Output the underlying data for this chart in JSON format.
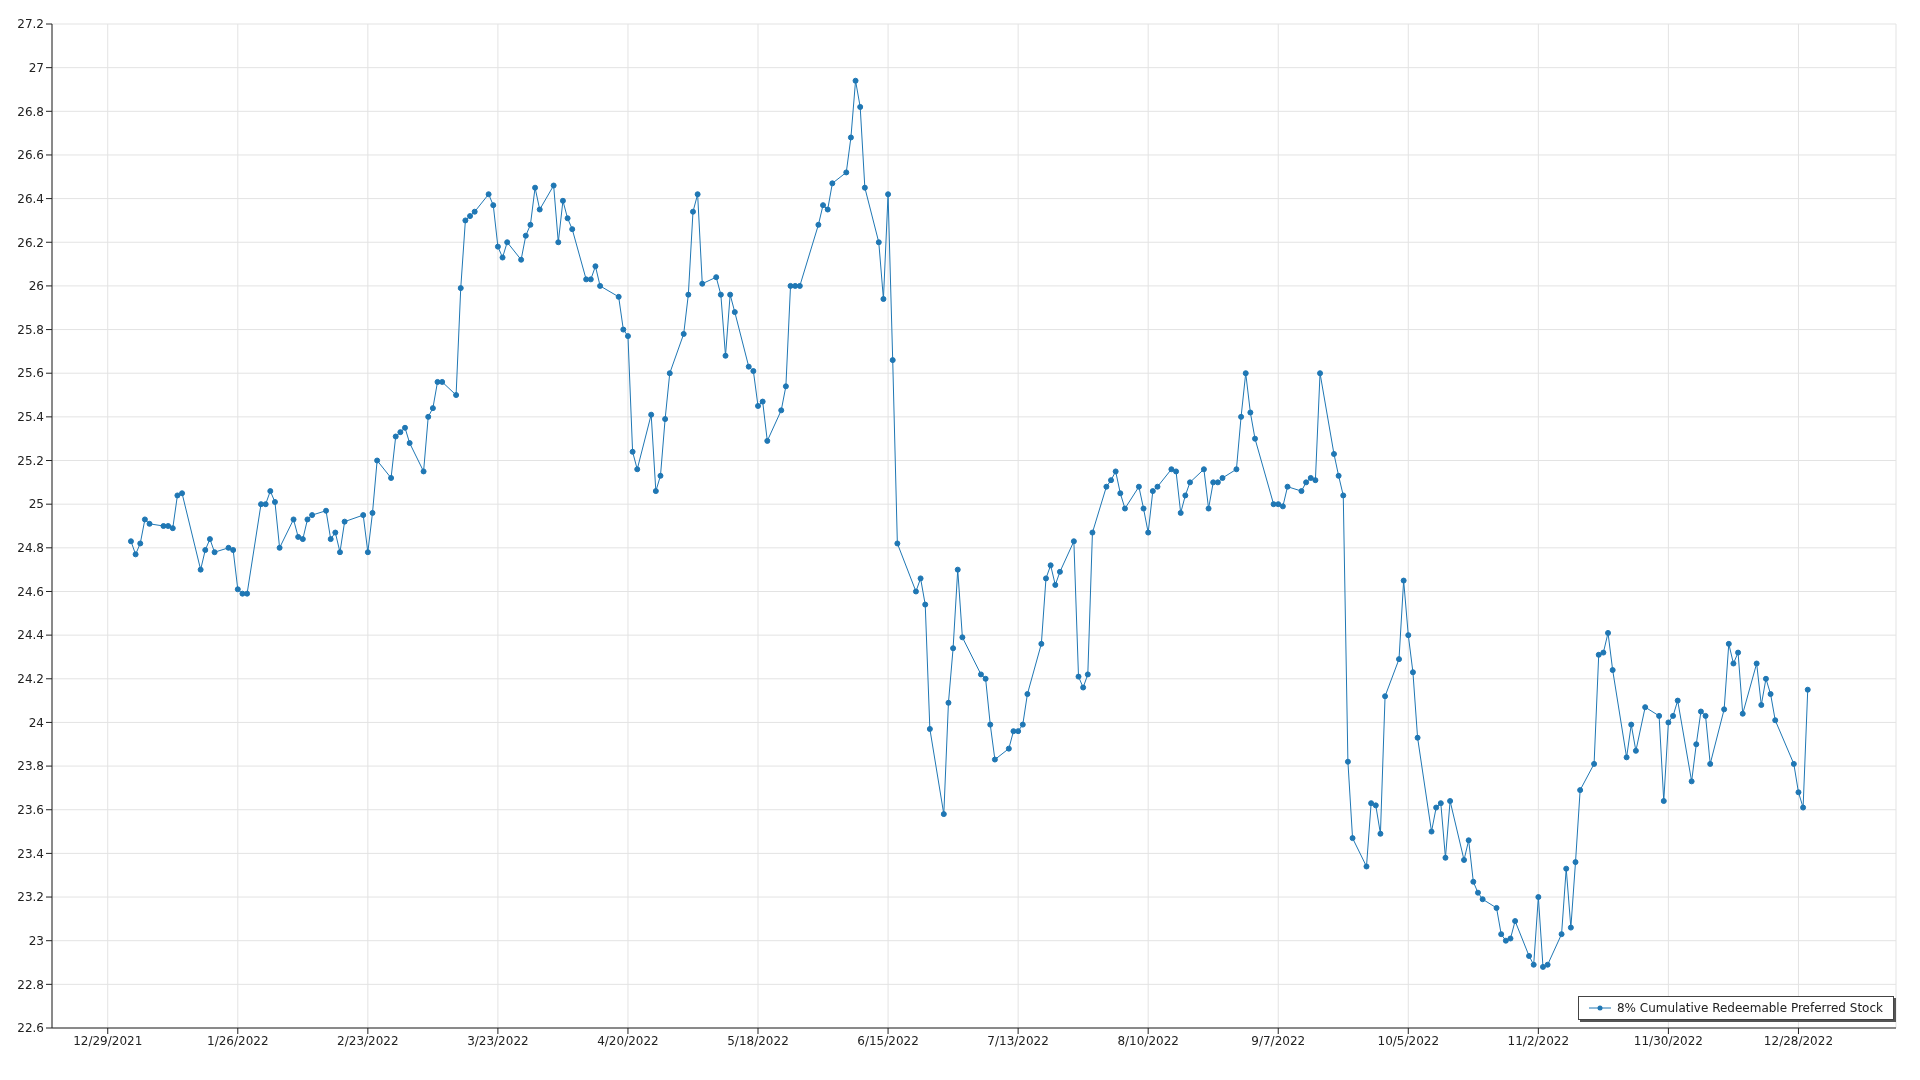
{
  "chart_data": {
    "type": "line",
    "x": [
      "2022-01-03",
      "2022-01-04",
      "2022-01-05",
      "2022-01-06",
      "2022-01-07",
      "2022-01-10",
      "2022-01-11",
      "2022-01-12",
      "2022-01-13",
      "2022-01-14",
      "2022-01-18",
      "2022-01-19",
      "2022-01-20",
      "2022-01-21",
      "2022-01-24",
      "2022-01-25",
      "2022-01-26",
      "2022-01-27",
      "2022-01-28",
      "2022-01-31",
      "2022-02-01",
      "2022-02-02",
      "2022-02-03",
      "2022-02-04",
      "2022-02-07",
      "2022-02-08",
      "2022-02-09",
      "2022-02-10",
      "2022-02-11",
      "2022-02-14",
      "2022-02-15",
      "2022-02-16",
      "2022-02-17",
      "2022-02-18",
      "2022-02-22",
      "2022-02-23",
      "2022-02-24",
      "2022-02-25",
      "2022-02-28",
      "2022-03-01",
      "2022-03-02",
      "2022-03-03",
      "2022-03-04",
      "2022-03-07",
      "2022-03-08",
      "2022-03-09",
      "2022-03-10",
      "2022-03-11",
      "2022-03-14",
      "2022-03-15",
      "2022-03-16",
      "2022-03-17",
      "2022-03-18",
      "2022-03-21",
      "2022-03-22",
      "2022-03-23",
      "2022-03-24",
      "2022-03-25",
      "2022-03-28",
      "2022-03-29",
      "2022-03-30",
      "2022-03-31",
      "2022-04-01",
      "2022-04-04",
      "2022-04-05",
      "2022-04-06",
      "2022-04-07",
      "2022-04-08",
      "2022-04-11",
      "2022-04-12",
      "2022-04-13",
      "2022-04-14",
      "2022-04-18",
      "2022-04-19",
      "2022-04-20",
      "2022-04-21",
      "2022-04-22",
      "2022-04-25",
      "2022-04-26",
      "2022-04-27",
      "2022-04-28",
      "2022-04-29",
      "2022-05-02",
      "2022-05-03",
      "2022-05-04",
      "2022-05-05",
      "2022-05-06",
      "2022-05-09",
      "2022-05-10",
      "2022-05-11",
      "2022-05-12",
      "2022-05-13",
      "2022-05-16",
      "2022-05-17",
      "2022-05-18",
      "2022-05-19",
      "2022-05-20",
      "2022-05-23",
      "2022-05-24",
      "2022-05-25",
      "2022-05-26",
      "2022-05-27",
      "2022-05-31",
      "2022-06-01",
      "2022-06-02",
      "2022-06-03",
      "2022-06-06",
      "2022-06-07",
      "2022-06-08",
      "2022-06-09",
      "2022-06-10",
      "2022-06-13",
      "2022-06-14",
      "2022-06-15",
      "2022-06-16",
      "2022-06-17",
      "2022-06-21",
      "2022-06-22",
      "2022-06-23",
      "2022-06-24",
      "2022-06-27",
      "2022-06-28",
      "2022-06-29",
      "2022-06-30",
      "2022-07-01",
      "2022-07-05",
      "2022-07-06",
      "2022-07-07",
      "2022-07-08",
      "2022-07-11",
      "2022-07-12",
      "2022-07-13",
      "2022-07-14",
      "2022-07-15",
      "2022-07-18",
      "2022-07-19",
      "2022-07-20",
      "2022-07-21",
      "2022-07-22",
      "2022-07-25",
      "2022-07-26",
      "2022-07-27",
      "2022-07-28",
      "2022-07-29",
      "2022-08-01",
      "2022-08-02",
      "2022-08-03",
      "2022-08-04",
      "2022-08-05",
      "2022-08-08",
      "2022-08-09",
      "2022-08-10",
      "2022-08-11",
      "2022-08-12",
      "2022-08-15",
      "2022-08-16",
      "2022-08-17",
      "2022-08-18",
      "2022-08-19",
      "2022-08-22",
      "2022-08-23",
      "2022-08-24",
      "2022-08-25",
      "2022-08-26",
      "2022-08-29",
      "2022-08-30",
      "2022-08-31",
      "2022-09-01",
      "2022-09-02",
      "2022-09-06",
      "2022-09-07",
      "2022-09-08",
      "2022-09-09",
      "2022-09-12",
      "2022-09-13",
      "2022-09-14",
      "2022-09-15",
      "2022-09-16",
      "2022-09-19",
      "2022-09-20",
      "2022-09-21",
      "2022-09-22",
      "2022-09-23",
      "2022-09-26",
      "2022-09-27",
      "2022-09-28",
      "2022-09-29",
      "2022-09-30",
      "2022-10-03",
      "2022-10-04",
      "2022-10-05",
      "2022-10-06",
      "2022-10-07",
      "2022-10-10",
      "2022-10-11",
      "2022-10-12",
      "2022-10-13",
      "2022-10-14",
      "2022-10-17",
      "2022-10-18",
      "2022-10-19",
      "2022-10-20",
      "2022-10-21",
      "2022-10-24",
      "2022-10-25",
      "2022-10-26",
      "2022-10-27",
      "2022-10-28",
      "2022-10-31",
      "2022-11-01",
      "2022-11-02",
      "2022-11-03",
      "2022-11-04",
      "2022-11-07",
      "2022-11-08",
      "2022-11-09",
      "2022-11-10",
      "2022-11-11",
      "2022-11-14",
      "2022-11-15",
      "2022-11-16",
      "2022-11-17",
      "2022-11-18",
      "2022-11-21",
      "2022-11-22",
      "2022-11-23",
      "2022-11-25",
      "2022-11-28",
      "2022-11-29",
      "2022-11-30",
      "2022-12-01",
      "2022-12-02",
      "2022-12-05",
      "2022-12-06",
      "2022-12-07",
      "2022-12-08",
      "2022-12-09",
      "2022-12-12",
      "2022-12-13",
      "2022-12-14",
      "2022-12-15",
      "2022-12-16",
      "2022-12-19",
      "2022-12-20",
      "2022-12-21",
      "2022-12-22",
      "2022-12-23",
      "2022-12-27",
      "2022-12-28",
      "2022-12-29",
      "2022-12-30"
    ],
    "series": [
      {
        "name": "8% Cumulative Redeemable Preferred Stock",
        "color": "#1f77b4",
        "values": [
          24.83,
          24.77,
          24.82,
          24.93,
          24.91,
          24.9,
          24.9,
          24.89,
          25.04,
          25.05,
          24.7,
          24.79,
          24.84,
          24.78,
          24.8,
          24.79,
          24.61,
          24.59,
          24.59,
          25.0,
          25.0,
          25.06,
          25.01,
          24.8,
          24.93,
          24.85,
          24.84,
          24.93,
          24.95,
          24.97,
          24.84,
          24.87,
          24.78,
          24.92,
          24.95,
          24.78,
          24.96,
          25.2,
          25.12,
          25.31,
          25.33,
          25.35,
          25.28,
          25.15,
          25.4,
          25.44,
          25.56,
          25.56,
          25.5,
          25.99,
          26.3,
          26.32,
          26.34,
          26.42,
          26.37,
          26.18,
          26.13,
          26.2,
          26.12,
          26.23,
          26.28,
          26.45,
          26.35,
          26.46,
          26.2,
          26.39,
          26.31,
          26.26,
          26.03,
          26.03,
          26.09,
          26.0,
          25.95,
          25.8,
          25.77,
          25.24,
          25.16,
          25.41,
          25.06,
          25.13,
          25.39,
          25.6,
          25.78,
          25.96,
          26.34,
          26.42,
          26.01,
          26.04,
          25.96,
          25.68,
          25.96,
          25.88,
          25.63,
          25.61,
          25.45,
          25.47,
          25.29,
          25.43,
          25.54,
          26.0,
          26.0,
          26.0,
          26.28,
          26.37,
          26.35,
          26.47,
          26.52,
          26.68,
          26.94,
          26.82,
          26.45,
          26.2,
          25.94,
          26.42,
          25.66,
          24.82,
          24.6,
          24.66,
          24.54,
          23.97,
          23.58,
          24.09,
          24.34,
          24.7,
          24.39,
          24.22,
          24.2,
          23.99,
          23.83,
          23.88,
          23.96,
          23.96,
          23.99,
          24.13,
          24.36,
          24.66,
          24.72,
          24.63,
          24.69,
          24.83,
          24.21,
          24.16,
          24.22,
          24.87,
          25.08,
          25.11,
          25.15,
          25.05,
          24.98,
          25.08,
          24.98,
          24.87,
          25.06,
          25.08,
          25.16,
          25.15,
          24.96,
          25.04,
          25.1,
          25.16,
          24.98,
          25.1,
          25.1,
          25.12,
          25.16,
          25.4,
          25.6,
          25.42,
          25.3,
          25.0,
          25.0,
          24.99,
          25.08,
          25.06,
          25.1,
          25.12,
          25.11,
          25.6,
          25.23,
          25.13,
          25.04,
          23.82,
          23.47,
          23.34,
          23.63,
          23.62,
          23.49,
          24.12,
          24.29,
          24.65,
          24.4,
          24.23,
          23.93,
          23.5,
          23.61,
          23.63,
          23.38,
          23.64,
          23.37,
          23.46,
          23.27,
          23.22,
          23.19,
          23.15,
          23.03,
          23.0,
          23.01,
          23.09,
          22.93,
          22.89,
          23.2,
          22.88,
          22.89,
          23.03,
          23.33,
          23.06,
          23.36,
          23.69,
          23.81,
          24.31,
          24.32,
          24.41,
          24.24,
          23.84,
          23.99,
          23.87,
          24.07,
          24.03,
          23.64,
          24.0,
          24.03,
          24.1,
          23.73,
          23.9,
          24.05,
          24.03,
          23.81,
          24.06,
          24.36,
          24.27,
          24.32,
          24.04,
          24.27,
          24.08,
          24.2,
          24.13,
          24.01,
          23.81,
          23.68,
          23.61,
          24.15
        ]
      }
    ],
    "xlim": [
      "2021-12-17",
      "2023-01-18"
    ],
    "xticks": [
      {
        "value": "2021-12-29",
        "label": "12/29/2021"
      },
      {
        "value": "2022-01-26",
        "label": "1/26/2022"
      },
      {
        "value": "2022-02-23",
        "label": "2/23/2022"
      },
      {
        "value": "2022-03-23",
        "label": "3/23/2022"
      },
      {
        "value": "2022-04-20",
        "label": "4/20/2022"
      },
      {
        "value": "2022-05-18",
        "label": "5/18/2022"
      },
      {
        "value": "2022-06-15",
        "label": "6/15/2022"
      },
      {
        "value": "2022-07-13",
        "label": "7/13/2022"
      },
      {
        "value": "2022-08-10",
        "label": "8/10/2022"
      },
      {
        "value": "2022-09-07",
        "label": "9/7/2022"
      },
      {
        "value": "2022-10-05",
        "label": "10/5/2022"
      },
      {
        "value": "2022-11-02",
        "label": "11/2/2022"
      },
      {
        "value": "2022-11-30",
        "label": "11/30/2022"
      },
      {
        "value": "2022-12-28",
        "label": "12/28/2022"
      }
    ],
    "ylim": [
      22.6,
      27.2
    ],
    "yticks": [
      22.6,
      22.8,
      23,
      23.2,
      23.4,
      23.6,
      23.8,
      24,
      24.2,
      24.4,
      24.6,
      24.8,
      25,
      25.2,
      25.4,
      25.6,
      25.8,
      26,
      26.2,
      26.4,
      26.6,
      26.8,
      27,
      27.2
    ],
    "grid": true,
    "legend": "bottom right",
    "marker": "circle",
    "line_style": "solid"
  }
}
